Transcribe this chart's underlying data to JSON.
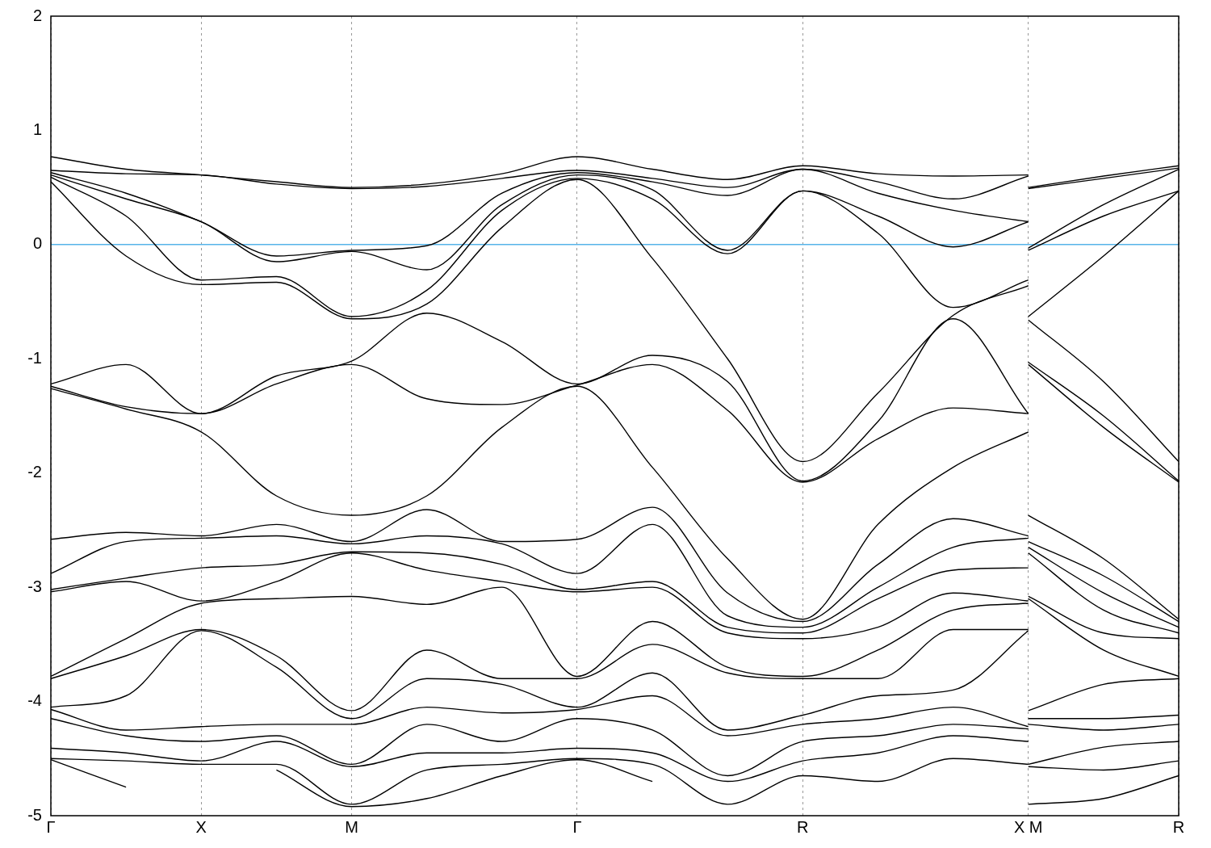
{
  "chart_data": {
    "type": "line",
    "categories": [
      "Γ",
      null,
      "X",
      null,
      "M",
      null,
      null,
      "Γ",
      null,
      null,
      "R",
      null,
      null,
      "X M",
      null,
      "R"
    ],
    "ylim": [
      -5,
      2
    ],
    "yticks": [
      -5,
      -4,
      -3,
      -2,
      -1,
      0,
      1,
      2
    ],
    "grid": "x",
    "legend": false,
    "ref_lines": [
      {
        "axis": "y",
        "value": 0,
        "color": "#56b4e9"
      }
    ],
    "series": [
      {
        "color": "#000000",
        "values": [
          0.77,
          0.66,
          0.61,
          0.55,
          0.5,
          0.53,
          0.62,
          0.77,
          0.66,
          0.57,
          0.69,
          0.62,
          0.6,
          0.61,
          null,
          null
        ]
      },
      {
        "color": "#000000",
        "values": [
          null,
          null,
          null,
          null,
          null,
          null,
          null,
          null,
          null,
          null,
          null,
          null,
          null,
          0.5,
          0.6,
          0.69
        ]
      },
      {
        "color": "#000000",
        "values": [
          0.65,
          0.62,
          0.61,
          0.53,
          0.49,
          0.51,
          0.58,
          0.65,
          0.58,
          0.5,
          0.66,
          0.55,
          0.4,
          0.6,
          null,
          null
        ]
      },
      {
        "color": "#000000",
        "values": [
          null,
          null,
          null,
          null,
          null,
          null,
          null,
          null,
          null,
          null,
          null,
          null,
          null,
          0.49,
          0.58,
          0.67
        ]
      },
      {
        "color": "#000000",
        "values": [
          0.63,
          0.45,
          0.2,
          -0.1,
          -0.05,
          -0.01,
          0.45,
          0.63,
          0.55,
          0.43,
          0.66,
          0.45,
          0.3,
          0.2,
          null,
          null
        ]
      },
      {
        "color": "#000000",
        "values": [
          null,
          null,
          null,
          null,
          null,
          null,
          null,
          null,
          null,
          null,
          null,
          null,
          null,
          -0.03,
          0.35,
          0.66
        ]
      },
      {
        "color": "#000000",
        "values": [
          0.61,
          0.4,
          0.2,
          -0.15,
          -0.06,
          -0.22,
          0.35,
          0.61,
          0.48,
          -0.05,
          0.47,
          0.25,
          -0.02,
          0.2,
          null,
          null
        ]
      },
      {
        "color": "#000000",
        "values": [
          null,
          null,
          null,
          null,
          null,
          null,
          null,
          null,
          null,
          null,
          null,
          null,
          null,
          -0.05,
          0.25,
          0.47
        ]
      },
      {
        "color": "#000000",
        "values": [
          0.59,
          0.25,
          -0.31,
          -0.28,
          -0.63,
          -0.4,
          0.3,
          0.58,
          0.4,
          -0.08,
          0.47,
          0.1,
          -0.55,
          -0.31,
          null,
          null
        ]
      },
      {
        "color": "#000000",
        "values": [
          null,
          null,
          null,
          null,
          null,
          null,
          null,
          null,
          null,
          null,
          null,
          null,
          null,
          -0.63,
          -0.1,
          0.47
        ]
      },
      {
        "color": "#000000",
        "values": [
          0.55,
          -0.1,
          -0.35,
          -0.33,
          -0.65,
          -0.52,
          0.15,
          0.57,
          -0.12,
          -1.0,
          -1.9,
          -1.3,
          -0.62,
          -0.36,
          null,
          null
        ]
      },
      {
        "color": "#000000",
        "values": [
          null,
          null,
          null,
          null,
          null,
          null,
          null,
          null,
          null,
          null,
          null,
          null,
          null,
          -0.66,
          -1.2,
          -1.9
        ]
      },
      {
        "color": "#000000",
        "values": [
          -1.22,
          -1.05,
          -1.48,
          -1.15,
          -1.02,
          -0.6,
          -0.85,
          -1.22,
          -0.97,
          -1.2,
          -2.07,
          -1.55,
          -0.65,
          -1.48,
          null,
          null
        ]
      },
      {
        "color": "#000000",
        "values": [
          null,
          null,
          null,
          null,
          null,
          null,
          null,
          null,
          null,
          null,
          null,
          null,
          null,
          -1.03,
          -1.5,
          -2.07
        ]
      },
      {
        "color": "#000000",
        "values": [
          -1.24,
          -1.42,
          -1.48,
          -1.22,
          -1.05,
          -1.35,
          -1.4,
          -1.23,
          -1.05,
          -1.45,
          -2.08,
          -1.7,
          -1.43,
          -1.48,
          null,
          null
        ]
      },
      {
        "color": "#000000",
        "values": [
          null,
          null,
          null,
          null,
          null,
          null,
          null,
          null,
          null,
          null,
          null,
          null,
          null,
          -1.05,
          -1.6,
          -2.08
        ]
      },
      {
        "color": "#000000",
        "values": [
          -1.26,
          -1.44,
          -1.64,
          -2.2,
          -2.37,
          -2.2,
          -1.6,
          -1.24,
          -1.95,
          -2.75,
          -3.28,
          -2.45,
          -1.95,
          -1.64,
          null,
          null
        ]
      },
      {
        "color": "#000000",
        "values": [
          null,
          null,
          null,
          null,
          null,
          null,
          null,
          null,
          null,
          null,
          null,
          null,
          null,
          -2.37,
          -2.75,
          -3.28
        ]
      },
      {
        "color": "#000000",
        "values": [
          -2.58,
          -2.52,
          -2.55,
          -2.45,
          -2.6,
          -2.32,
          -2.6,
          -2.58,
          -2.3,
          -3.05,
          -3.3,
          -2.8,
          -2.4,
          -2.55,
          null,
          null
        ]
      },
      {
        "color": "#000000",
        "values": [
          null,
          null,
          null,
          null,
          null,
          null,
          null,
          null,
          null,
          null,
          null,
          null,
          null,
          -2.6,
          -2.9,
          -3.3
        ]
      },
      {
        "color": "#000000",
        "values": [
          -2.88,
          -2.6,
          -2.57,
          -2.55,
          -2.62,
          -2.55,
          -2.62,
          -2.88,
          -2.45,
          -3.25,
          -3.35,
          -3.0,
          -2.65,
          -2.57,
          null,
          null
        ]
      },
      {
        "color": "#000000",
        "values": [
          null,
          null,
          null,
          null,
          null,
          null,
          null,
          null,
          null,
          null,
          null,
          null,
          null,
          -2.65,
          -3.05,
          -3.35
        ]
      },
      {
        "color": "#000000",
        "values": [
          -3.02,
          -2.92,
          -2.83,
          -2.8,
          -2.69,
          -2.7,
          -2.8,
          -3.02,
          -2.95,
          -3.35,
          -3.4,
          -3.1,
          -2.85,
          -2.83,
          null,
          null
        ]
      },
      {
        "color": "#000000",
        "values": [
          null,
          null,
          null,
          null,
          null,
          null,
          null,
          null,
          null,
          null,
          null,
          null,
          null,
          -2.7,
          -3.2,
          -3.4
        ]
      },
      {
        "color": "#000000",
        "values": [
          -3.04,
          -2.95,
          -3.12,
          -2.95,
          -2.7,
          -2.85,
          -2.95,
          -3.04,
          -3.0,
          -3.4,
          -3.45,
          -3.35,
          -3.05,
          -3.12,
          null,
          null
        ]
      },
      {
        "color": "#000000",
        "values": [
          null,
          null,
          null,
          null,
          null,
          null,
          null,
          null,
          null,
          null,
          null,
          null,
          null,
          -3.08,
          -3.4,
          -3.45
        ]
      },
      {
        "color": "#000000",
        "values": [
          -3.78,
          -3.45,
          -3.14,
          -3.1,
          -3.08,
          -3.15,
          -3.0,
          -3.78,
          -3.3,
          -3.7,
          -3.78,
          -3.55,
          -3.2,
          -3.14,
          null,
          null
        ]
      },
      {
        "color": "#000000",
        "values": [
          null,
          null,
          null,
          null,
          null,
          null,
          null,
          null,
          null,
          null,
          null,
          null,
          null,
          -3.1,
          -3.55,
          -3.78
        ]
      },
      {
        "color": "#000000",
        "values": [
          -3.8,
          -3.6,
          -3.37,
          -3.6,
          -4.08,
          -3.55,
          -3.8,
          -3.8,
          -3.5,
          -3.75,
          -3.8,
          -3.8,
          -3.37,
          -3.37,
          null,
          null
        ]
      },
      {
        "color": "#000000",
        "values": [
          null,
          null,
          null,
          null,
          null,
          null,
          null,
          null,
          null,
          null,
          null,
          null,
          null,
          -4.08,
          -3.85,
          -3.8
        ]
      },
      {
        "color": "#000000",
        "values": [
          -4.05,
          -3.95,
          -3.38,
          -3.7,
          -4.15,
          -3.8,
          -3.85,
          -4.05,
          -3.75,
          -4.25,
          -4.12,
          -3.95,
          -3.9,
          -3.38,
          null,
          null
        ]
      },
      {
        "color": "#000000",
        "values": [
          null,
          null,
          null,
          null,
          null,
          null,
          null,
          null,
          null,
          null,
          null,
          null,
          null,
          -4.15,
          -4.15,
          -4.12
        ]
      },
      {
        "color": "#000000",
        "values": [
          -4.07,
          -4.25,
          -4.22,
          -4.2,
          -4.2,
          -4.05,
          -4.1,
          -4.07,
          -3.95,
          -4.3,
          -4.2,
          -4.15,
          -4.05,
          -4.22,
          null,
          null
        ]
      },
      {
        "color": "#000000",
        "values": [
          null,
          null,
          null,
          null,
          null,
          null,
          null,
          null,
          null,
          null,
          null,
          null,
          null,
          -4.2,
          -4.25,
          -4.2
        ]
      },
      {
        "color": "#000000",
        "values": [
          -4.15,
          -4.3,
          -4.35,
          -4.3,
          -4.55,
          -4.2,
          -4.35,
          -4.15,
          -4.25,
          -4.65,
          -4.35,
          -4.3,
          -4.2,
          -4.24,
          null,
          null
        ]
      },
      {
        "color": "#000000",
        "values": [
          null,
          null,
          null,
          null,
          null,
          null,
          null,
          null,
          null,
          null,
          null,
          null,
          null,
          -4.55,
          -4.4,
          -4.35
        ]
      },
      {
        "color": "#000000",
        "values": [
          -4.41,
          -4.45,
          -4.52,
          -4.35,
          -4.57,
          -4.45,
          -4.45,
          -4.41,
          -4.45,
          -4.7,
          -4.52,
          -4.45,
          -4.3,
          -4.35,
          null,
          null
        ]
      },
      {
        "color": "#000000",
        "values": [
          null,
          null,
          null,
          null,
          null,
          null,
          null,
          null,
          null,
          null,
          null,
          null,
          null,
          -4.57,
          -4.6,
          -4.52
        ]
      },
      {
        "color": "#000000",
        "values": [
          -4.5,
          -4.52,
          -4.55,
          -4.55,
          -4.9,
          -4.6,
          -4.55,
          -4.5,
          -4.55,
          -4.9,
          -4.65,
          -4.7,
          -4.5,
          -4.55,
          null,
          null
        ]
      },
      {
        "color": "#000000",
        "values": [
          null,
          null,
          null,
          null,
          null,
          null,
          null,
          null,
          null,
          null,
          null,
          null,
          null,
          -4.9,
          -4.85,
          -4.65
        ]
      },
      {
        "color": "#000000",
        "values": [
          -4.51,
          -4.75,
          null,
          -4.6,
          -4.92,
          -4.85,
          -4.65,
          -4.51,
          -4.7,
          null,
          null,
          null,
          null,
          null,
          null,
          null
        ]
      }
    ]
  }
}
